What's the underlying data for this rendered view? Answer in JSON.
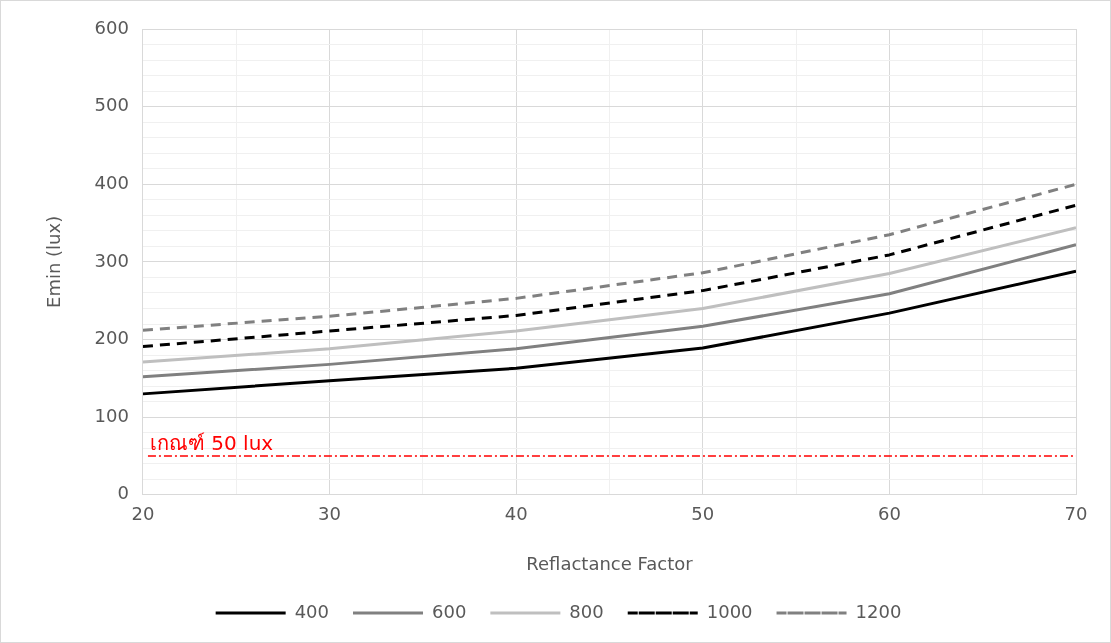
{
  "chart_data": {
    "type": "line",
    "xlabel": "Reflactance Factor",
    "ylabel": "Emin (lux)",
    "x": [
      20,
      30,
      40,
      50,
      60,
      70
    ],
    "series": [
      {
        "name": "400",
        "color": "#000000",
        "line_style": "solid",
        "values": [
          130,
          147,
          163,
          189,
          234,
          288
        ]
      },
      {
        "name": "600",
        "color": "#808080",
        "line_style": "solid",
        "values": [
          152,
          168,
          188,
          217,
          259,
          322
        ]
      },
      {
        "name": "800",
        "color": "#bfbfbf",
        "line_style": "solid",
        "values": [
          171,
          188,
          211,
          240,
          285,
          344
        ]
      },
      {
        "name": "1000",
        "color": "#000000",
        "line_style": "dashed",
        "values": [
          191,
          211,
          231,
          263,
          309,
          373
        ]
      },
      {
        "name": "1200",
        "color": "#808080",
        "line_style": "dashed",
        "values": [
          212,
          230,
          253,
          286,
          335,
          400
        ]
      }
    ],
    "xlim": [
      20,
      70
    ],
    "xticks": [
      20,
      {
        "value": 25,
        "label": null
      },
      30,
      {
        "value": 35,
        "label": null
      },
      40,
      {
        "value": 45,
        "label": null
      },
      50,
      {
        "value": 55,
        "label": null
      },
      60,
      {
        "value": 65,
        "label": null
      },
      70
    ],
    "ylim": [
      0,
      600
    ],
    "yticks": [
      0,
      {
        "value": 20,
        "label": null
      },
      {
        "value": 40,
        "label": null
      },
      {
        "value": 60,
        "label": null
      },
      {
        "value": 80,
        "label": null
      },
      100,
      {
        "value": 120,
        "label": null
      },
      {
        "value": 140,
        "label": null
      },
      {
        "value": 160,
        "label": null
      },
      {
        "value": 180,
        "label": null
      },
      200,
      {
        "value": 220,
        "label": null
      },
      {
        "value": 240,
        "label": null
      },
      {
        "value": 260,
        "label": null
      },
      {
        "value": 280,
        "label": null
      },
      300,
      {
        "value": 320,
        "label": null
      },
      {
        "value": 340,
        "label": null
      },
      {
        "value": 360,
        "label": null
      },
      {
        "value": 380,
        "label": null
      },
      400,
      {
        "value": 420,
        "label": null
      },
      {
        "value": 440,
        "label": null
      },
      {
        "value": 460,
        "label": null
      },
      {
        "value": 480,
        "label": null
      },
      500,
      {
        "value": 520,
        "label": null
      },
      {
        "value": 540,
        "label": null
      },
      {
        "value": 560,
        "label": null
      },
      {
        "value": 580,
        "label": null
      },
      600
    ],
    "ref_lines": [
      {
        "axis": "y",
        "value": 50,
        "label": "เกณฑ์ 50 lux",
        "color": "#ff0000",
        "line_style": "dashdot"
      }
    ],
    "grid": true,
    "legend": "bottom",
    "marker": "none"
  }
}
